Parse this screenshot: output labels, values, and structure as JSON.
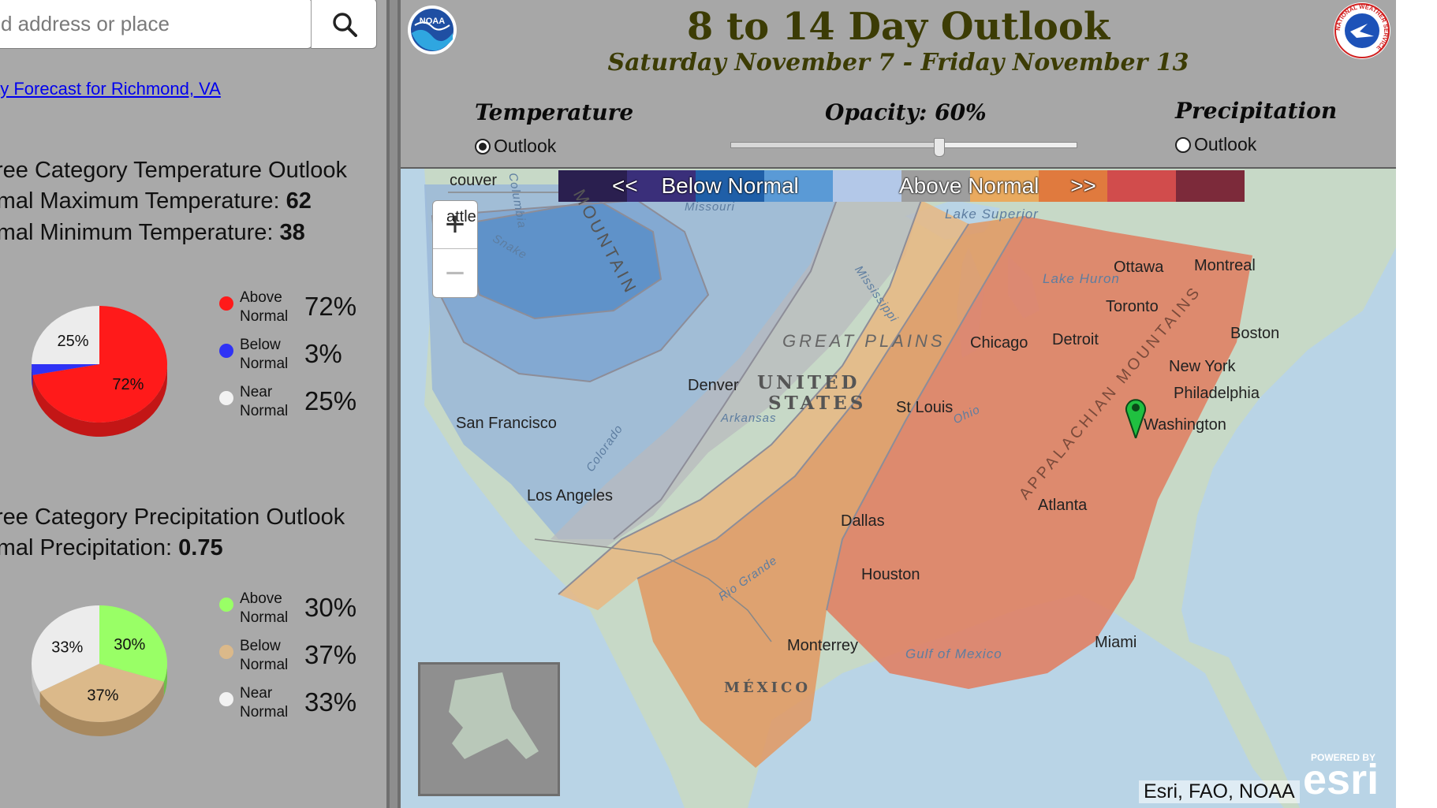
{
  "search": {
    "placeholder": "d address or place"
  },
  "left": {
    "forecast_link": "ay Forecast for Richmond, VA",
    "temp_heading": "ree Category Temperature Outlook",
    "max_label": "rmal Maximum Temperature: ",
    "max_value": "62",
    "min_label": "rmal Minimum Temperature: ",
    "min_value": "38",
    "temp_pie": {
      "slices": [
        {
          "label": "Above Normal",
          "pct": 72,
          "color": "#ff1a1a",
          "shade": "#c31616",
          "text": "72%"
        },
        {
          "label": "Below Normal",
          "pct": 3,
          "color": "#2f32f5",
          "shade": "#2426b8",
          "text": ""
        },
        {
          "label": "Near Normal",
          "pct": 25,
          "color": "#ececec",
          "shade": "#bdbdbd",
          "text": "25%"
        }
      ]
    },
    "temp_legend": [
      {
        "l1": "Above",
        "l2": "Normal",
        "pct": "72%",
        "color": "#ff1a1a"
      },
      {
        "l1": "Below",
        "l2": "Normal",
        "pct": "3%",
        "color": "#2f32f5"
      },
      {
        "l1": "Near",
        "l2": "Normal",
        "pct": "25%",
        "color": "#f2f2f2"
      }
    ],
    "precip_heading": "ree Category Precipitation Outlook",
    "precip_label": "rmal Precipitation: ",
    "precip_value": "0.75",
    "precip_pie": {
      "slices": [
        {
          "label": "Above Normal",
          "pct": 30,
          "color": "#99ff66",
          "shade": "#6fbf4a",
          "text": "30%"
        },
        {
          "label": "Below Normal",
          "pct": 37,
          "color": "#dbb98a",
          "shade": "#a8895f",
          "text": "37%"
        },
        {
          "label": "Near Normal",
          "pct": 33,
          "color": "#ececec",
          "shade": "#bdbdbd",
          "text": "33%"
        }
      ]
    },
    "precip_legend": [
      {
        "l1": "Above",
        "l2": "Normal",
        "pct": "30%",
        "color": "#99ff66"
      },
      {
        "l1": "Below",
        "l2": "Normal",
        "pct": "37%",
        "color": "#dbb98a"
      },
      {
        "l1": "Near",
        "l2": "Normal",
        "pct": "33%",
        "color": "#f2f2f2"
      }
    ]
  },
  "header": {
    "title": "8 to 14 Day Outlook",
    "dates": "Saturday November 7 - Friday November 13",
    "noaa_logo_text": "NOAA",
    "nws_logo_text": "NATIONAL WEATHER SERVICE"
  },
  "controls": {
    "temperature_label": "Temperature",
    "temperature_option": "Outlook",
    "opacity_label": "Opacity: 60%",
    "opacity_value": 0.6,
    "precipitation_label": "Precipitation",
    "precipitation_option": "Outlook"
  },
  "legend": {
    "below_label": "Below Normal",
    "below_arrows": "<<",
    "above_label": "Above Normal",
    "above_arrows": ">>",
    "colors": [
      "#2a1f4f",
      "#3a2f7a",
      "#1f5fa8",
      "#5a9ad6",
      "#b3c8e8",
      "#9e9e9e",
      "#e9aa5f",
      "#e07a3e",
      "#d14c4c",
      "#7c2a3a"
    ]
  },
  "map": {
    "zoom_in": "+",
    "zoom_out": "−",
    "attribution": "Esri, FAO, NOAA",
    "esri_powered": "POWERED BY",
    "esri_word": "esri",
    "cities": [
      "couver",
      "attle",
      "San Francisco",
      "Los Angeles",
      "Denver",
      "Dallas",
      "Houston",
      "Monterrey",
      "St Louis",
      "Chicago",
      "Detroit",
      "Toronto",
      "Ottawa",
      "Montreal",
      "Boston",
      "New York",
      "Philadelphia",
      "Washington",
      "Atlanta",
      "Miami"
    ],
    "features": [
      "MOUNTAIN",
      "GREAT PLAINS",
      "UNITED",
      "STATES",
      "APPALACHIAN MOUNTAINS",
      "Lake Superior",
      "Lake Huron",
      "Gulf of Mexico",
      "MÉXICO",
      "Missouri",
      "Mississippi",
      "Ohio",
      "Colorado",
      "Rio Grande",
      "Arkansas",
      "Snake",
      "Columbia"
    ]
  }
}
